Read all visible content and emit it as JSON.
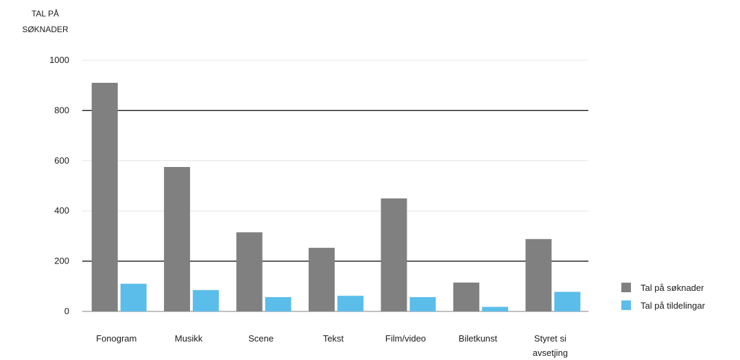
{
  "chart_data": {
    "type": "bar",
    "ylabel_lines": [
      "TAL PÅ",
      "SØKNADER"
    ],
    "categories": [
      [
        "Fonogram"
      ],
      [
        "Musikk"
      ],
      [
        "Scene"
      ],
      [
        "Tekst"
      ],
      [
        "Film/video"
      ],
      [
        "Biletkunst"
      ],
      [
        "Styret si",
        "avsetjing"
      ]
    ],
    "series": [
      {
        "name": "Tal på søknader",
        "color": "#808080",
        "values": [
          910,
          575,
          315,
          253,
          450,
          115,
          288
        ]
      },
      {
        "name": "Tal på tildelingar",
        "color": "#5bbdea",
        "values": [
          110,
          85,
          57,
          62,
          57,
          18,
          78
        ]
      }
    ],
    "ylim": [
      0,
      1000
    ],
    "yticks": [
      0,
      200,
      400,
      600,
      800,
      1000
    ],
    "legend_position": "right",
    "gridlines": {
      "dark": [
        200,
        800
      ],
      "light": [
        400,
        600,
        1000
      ]
    }
  }
}
